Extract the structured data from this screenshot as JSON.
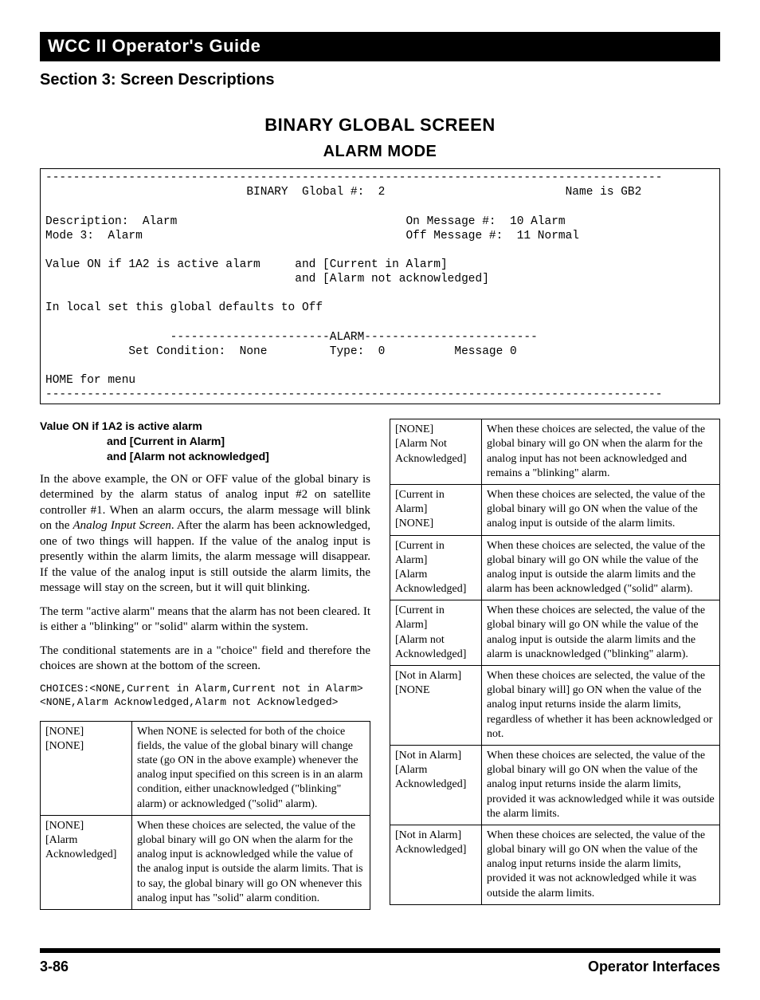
{
  "header": {
    "guide_title": "WCC II Operator's Guide",
    "section_title": "Section 3:  Screen Descriptions",
    "screen_title": "BINARY GLOBAL SCREEN",
    "screen_subtitle": "ALARM MODE"
  },
  "terminal": "-----------------------------------------------------------------------------------------\n                             BINARY  Global #:  2                          Name is GB2\n\nDescription:  Alarm                                 On Message #:  10 Alarm\nMode 3:  Alarm                                      Off Message #:  11 Normal\n\nValue ON if 1A2 is active alarm     and [Current in Alarm]\n                                    and [Alarm not acknowledged]\n\nIn local set this global defaults to Off\n\n                  -----------------------ALARM-------------------------\n            Set Condition:  None         Type:  0          Message 0\n\nHOME for menu\n-----------------------------------------------------------------------------------------",
  "left": {
    "heading_line1": "Value ON if 1A2 is active alarm",
    "heading_line2": "and [Current in Alarm]",
    "heading_line3": "and [Alarm not acknowledged]",
    "p1a": "In the above example, the ON or OFF value of the global binary is determined by the alarm status of analog input #2 on satellite controller #1. When an alarm occurs, the alarm message will blink on the ",
    "p1_italic": "Analog Input Screen",
    "p1b": ". After the alarm has been acknowledged, one of two things will happen. If the value of the analog input is presently within the alarm limits, the alarm message will disappear. If the value of the analog input is still outside the alarm limits, the message will stay on the screen, but it will quit blinking.",
    "p2": "The term \"active alarm\" means that the alarm has not been cleared. It is either a \"blinking\" or \"solid\" alarm within the system.",
    "p3": "The conditional statements are in a \"choice\" field and therefore the choices are shown at the bottom of the screen.",
    "choices": "CHOICES:<NONE,Current in Alarm,Current not in Alarm>\n<NONE,Alarm Acknowledged,Alarm not Acknowledged>",
    "table": [
      {
        "k": "[NONE]\n[NONE]",
        "v": "When NONE is selected for both of the choice fields, the value of the global binary will change state (go ON in the above example) whenever the analog input specified on this screen is in an alarm condition, either unacknowledged (\"blinking\" alarm) or acknowledged (\"solid\" alarm)."
      },
      {
        "k": "[NONE]\n[Alarm Acknowledged]",
        "v": "When these choices are selected, the value of the global binary will go ON when the alarm for the analog input is acknowledged while the value of the analog input is outside the alarm limits. That is to say, the global binary will go ON whenever this analog input has \"solid\" alarm condition."
      }
    ]
  },
  "right": {
    "table": [
      {
        "k": "[NONE]\n[Alarm Not Acknowledged]",
        "v": "When these choices are selected, the value of the global binary will go ON when the alarm for the analog input has not been acknowledged and remains a \"blinking\" alarm."
      },
      {
        "k": "[Current in Alarm]\n[NONE]",
        "v": "When these choices are selected, the value of the global binary will go ON when the value of the analog input is outside of the alarm limits."
      },
      {
        "k": "[Current in Alarm]\n[Alarm Acknowledged]",
        "v": "When these choices are selected, the value of the global binary will go ON while the value of the analog input is outside the alarm limits and the alarm has been acknowledged (\"solid\" alarm)."
      },
      {
        "k": "[Current in Alarm]\n[Alarm not Acknowledged]",
        "v": "When these choices are selected, the value of the global binary will go ON while the value of the analog input is outside the alarm limits and the alarm is unacknowledged (\"blinking\" alarm)."
      },
      {
        "k": "[Not in Alarm]\n[NONE",
        "v": "When these choices are selected, the value of the global binary will] go ON when the value of the analog input returns inside the alarm limits, regardless of whether it has been acknowledged or not."
      },
      {
        "k": "[Not in Alarm]\n[Alarm Acknowledged]",
        "v": "When these choices are selected, the value of the global binary will go ON when the value of the analog input returns inside the alarm limits, provided it was acknowledged while it was outside the alarm limits."
      },
      {
        "k": "[Not in Alarm]\nAcknowledged]",
        "v": "When these choices are selected, the value of the global binary will go ON when the value of the analog input returns inside the alarm limits, provided it was not acknowledged while it was outside the alarm limits."
      }
    ]
  },
  "footer": {
    "page": "3-86",
    "label": "Operator Interfaces"
  }
}
